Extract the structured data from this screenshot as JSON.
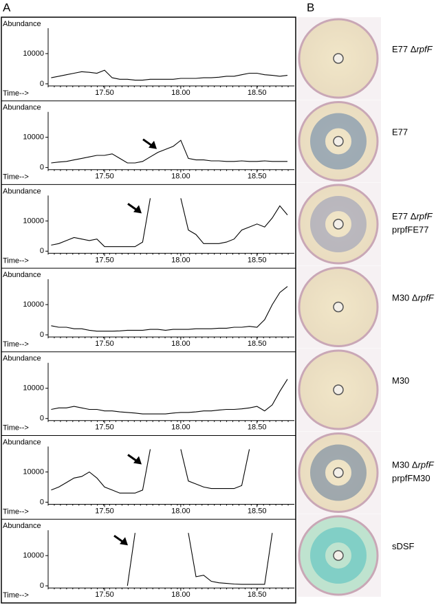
{
  "panel_labels": [
    "A",
    "B"
  ],
  "chart_data": [
    {
      "type": "line",
      "y_label": "Abundance",
      "x_label": "Time-->",
      "color": "#000000",
      "x": [
        17.15,
        17.2,
        17.25,
        17.3,
        17.35,
        17.4,
        17.45,
        17.5,
        17.55,
        17.6,
        17.65,
        17.7,
        17.75,
        17.8,
        17.85,
        17.9,
        17.95,
        18.0,
        18.05,
        18.1,
        18.15,
        18.2,
        18.25,
        18.3,
        18.35,
        18.4,
        18.45,
        18.5,
        18.55,
        18.6,
        18.65,
        18.7
      ],
      "values": [
        2000,
        2500,
        3000,
        3500,
        4000,
        3800,
        3500,
        4500,
        2000,
        1500,
        1500,
        1200,
        1200,
        1500,
        1500,
        1500,
        1500,
        1800,
        1800,
        1800,
        2000,
        2000,
        2200,
        2500,
        2500,
        3000,
        3500,
        3500,
        3000,
        2800,
        2500,
        2800
      ],
      "xlim": [
        17.13,
        18.745
      ],
      "ylim": [
        -700,
        17500
      ],
      "xticks": [
        {
          "value": 17.5,
          "label": "17.50"
        },
        {
          "value": 18.0,
          "label": "18.00"
        },
        {
          "value": 18.5,
          "label": "18.50"
        }
      ],
      "yticks": [
        0,
        10000
      ]
    },
    {
      "type": "line",
      "y_label": "Abundance",
      "x_label": "Time-->",
      "color": "#000000",
      "x": [
        17.15,
        17.2,
        17.25,
        17.3,
        17.35,
        17.4,
        17.45,
        17.5,
        17.55,
        17.6,
        17.65,
        17.7,
        17.75,
        17.8,
        17.85,
        17.9,
        17.95,
        18.0,
        18.05,
        18.1,
        18.15,
        18.2,
        18.25,
        18.3,
        18.35,
        18.4,
        18.45,
        18.5,
        18.55,
        18.6,
        18.65,
        18.7
      ],
      "values": [
        1500,
        1800,
        2000,
        2500,
        3000,
        3500,
        4000,
        4000,
        4500,
        3000,
        1500,
        1500,
        2000,
        3500,
        5000,
        6000,
        7000,
        9000,
        3000,
        2500,
        2500,
        2200,
        2200,
        2000,
        2000,
        2200,
        2000,
        2000,
        2200,
        2000,
        2000,
        2000
      ],
      "xlim": [
        17.13,
        18.745
      ],
      "ylim": [
        -700,
        17500
      ],
      "xticks": [
        {
          "value": 17.5,
          "label": "17.50"
        },
        {
          "value": 18.0,
          "label": "18.00"
        },
        {
          "value": 18.5,
          "label": "18.50"
        }
      ],
      "yticks": [
        0,
        10000
      ]
    },
    {
      "type": "line",
      "y_label": "Abundance",
      "x_label": "Time-->",
      "color": "#000000",
      "x": [
        17.15,
        17.2,
        17.25,
        17.3,
        17.35,
        17.4,
        17.45,
        17.5,
        17.55,
        17.6,
        17.65,
        17.7,
        17.75,
        17.8,
        17.85,
        17.9,
        17.95,
        18.0,
        18.05,
        18.1,
        18.15,
        18.2,
        18.25,
        18.3,
        18.35,
        18.4,
        18.45,
        18.5,
        18.55,
        18.6,
        18.65,
        18.7
      ],
      "values": [
        2000,
        2500,
        3500,
        4500,
        4000,
        3500,
        4000,
        1500,
        1500,
        1500,
        1500,
        1500,
        3000,
        17500,
        null,
        null,
        null,
        17500,
        7000,
        5500,
        2500,
        2500,
        2500,
        3000,
        4000,
        7000,
        8000,
        9000,
        8000,
        11000,
        15000,
        12000
      ],
      "xlim": [
        17.13,
        18.745
      ],
      "ylim": [
        -700,
        17500
      ],
      "xticks": [
        {
          "value": 17.5,
          "label": "17.50"
        },
        {
          "value": 18.0,
          "label": "18.00"
        },
        {
          "value": 18.5,
          "label": "18.50"
        }
      ],
      "yticks": [
        0,
        10000
      ]
    },
    {
      "type": "line",
      "y_label": "Abundance",
      "x_label": "Time-->",
      "color": "#000000",
      "x": [
        17.15,
        17.2,
        17.25,
        17.3,
        17.35,
        17.4,
        17.45,
        17.5,
        17.55,
        17.6,
        17.65,
        17.7,
        17.75,
        17.8,
        17.85,
        17.9,
        17.95,
        18.0,
        18.05,
        18.1,
        18.15,
        18.2,
        18.25,
        18.3,
        18.35,
        18.4,
        18.45,
        18.5,
        18.55,
        18.6,
        18.65,
        18.7
      ],
      "values": [
        3000,
        2500,
        2500,
        2000,
        2000,
        1500,
        1200,
        1200,
        1200,
        1300,
        1500,
        1500,
        1500,
        1800,
        1800,
        1500,
        1800,
        1800,
        1800,
        2000,
        2000,
        2000,
        2200,
        2200,
        2500,
        2500,
        2800,
        2500,
        5000,
        10000,
        14000,
        16000
      ],
      "xlim": [
        17.13,
        18.745
      ],
      "ylim": [
        -700,
        17500
      ],
      "xticks": [
        {
          "value": 17.5,
          "label": "17.50"
        },
        {
          "value": 18.0,
          "label": "18.00"
        },
        {
          "value": 18.5,
          "label": "18.50"
        }
      ],
      "yticks": [
        0,
        10000
      ]
    },
    {
      "type": "line",
      "y_label": "Abundance",
      "x_label": "Time-->",
      "color": "#000000",
      "x": [
        17.15,
        17.2,
        17.25,
        17.3,
        17.35,
        17.4,
        17.45,
        17.5,
        17.55,
        17.6,
        17.65,
        17.7,
        17.75,
        17.8,
        17.85,
        17.9,
        17.95,
        18.0,
        18.05,
        18.1,
        18.15,
        18.2,
        18.25,
        18.3,
        18.35,
        18.4,
        18.45,
        18.5,
        18.55,
        18.6,
        18.65,
        18.7
      ],
      "values": [
        3000,
        3500,
        3500,
        4000,
        3500,
        3000,
        3000,
        2500,
        2500,
        2200,
        2000,
        1800,
        1500,
        1500,
        1500,
        1500,
        1800,
        2000,
        2000,
        2200,
        2500,
        2500,
        2800,
        3000,
        3000,
        3200,
        3500,
        4000,
        2500,
        4500,
        9000,
        13000
      ],
      "xlim": [
        17.13,
        18.745
      ],
      "ylim": [
        -700,
        17500
      ],
      "xticks": [
        {
          "value": 17.5,
          "label": "17.50"
        },
        {
          "value": 18.0,
          "label": "18.00"
        },
        {
          "value": 18.5,
          "label": "18.50"
        }
      ],
      "yticks": [
        0,
        10000
      ]
    },
    {
      "type": "line",
      "y_label": "Abundance",
      "x_label": "Time-->",
      "color": "#000000",
      "x": [
        17.15,
        17.2,
        17.25,
        17.3,
        17.35,
        17.4,
        17.45,
        17.5,
        17.55,
        17.6,
        17.65,
        17.7,
        17.75,
        17.8,
        17.85,
        17.9,
        17.95,
        18.0,
        18.05,
        18.1,
        18.15,
        18.2,
        18.25,
        18.3,
        18.35,
        18.4,
        18.45,
        18.5,
        18.55,
        18.6,
        18.65,
        18.7
      ],
      "values": [
        4000,
        5000,
        6500,
        8000,
        8500,
        10000,
        8000,
        5000,
        4000,
        3000,
        3000,
        3000,
        4000,
        17500,
        null,
        null,
        null,
        17500,
        7000,
        6000,
        5000,
        4500,
        4500,
        4500,
        4500,
        5500,
        17500,
        null,
        null,
        null,
        null,
        null
      ],
      "xlim": [
        17.13,
        18.745
      ],
      "ylim": [
        -700,
        17500
      ],
      "xticks": [
        {
          "value": 17.5,
          "label": "17.50"
        },
        {
          "value": 18.0,
          "label": "18.00"
        },
        {
          "value": 18.5,
          "label": "18.50"
        }
      ],
      "yticks": [
        0,
        10000
      ]
    },
    {
      "type": "line",
      "y_label": "Abundance",
      "x_label": "Time-->",
      "color": "#000000",
      "x": [
        17.15,
        17.2,
        17.25,
        17.3,
        17.35,
        17.4,
        17.45,
        17.5,
        17.55,
        17.6,
        17.65,
        17.7,
        17.75,
        17.8,
        17.85,
        17.9,
        17.95,
        18.0,
        18.05,
        18.1,
        18.15,
        18.2,
        18.25,
        18.3,
        18.35,
        18.4,
        18.45,
        18.5,
        18.55,
        18.6,
        18.65,
        18.7
      ],
      "values": [
        null,
        null,
        null,
        null,
        null,
        null,
        null,
        null,
        null,
        null,
        0,
        17500,
        null,
        null,
        null,
        null,
        null,
        null,
        17500,
        3000,
        3500,
        1500,
        1000,
        800,
        600,
        500,
        500,
        500,
        500,
        17500,
        null,
        null
      ],
      "xlim": [
        17.13,
        18.745
      ],
      "ylim": [
        -700,
        17500
      ],
      "xticks": [
        {
          "value": 17.5,
          "label": "17.50"
        },
        {
          "value": 18.0,
          "label": "18.00"
        },
        {
          "value": 18.5,
          "label": "18.50"
        }
      ],
      "yticks": [
        0,
        10000
      ]
    }
  ],
  "plates": [
    {
      "text": "E77 Δ",
      "italic": "rpfF"
    },
    {
      "text": "E77"
    },
    {
      "text": "E77 Δ",
      "italic": "rpfF",
      "line2": "prpfFE77"
    },
    {
      "text": "M30 Δ",
      "italic": "rpfF"
    },
    {
      "text": "M30"
    },
    {
      "text": "M30 Δ",
      "italic": "rpfF",
      "line2": "prpfFM30"
    },
    {
      "text": "sDSF"
    }
  ]
}
